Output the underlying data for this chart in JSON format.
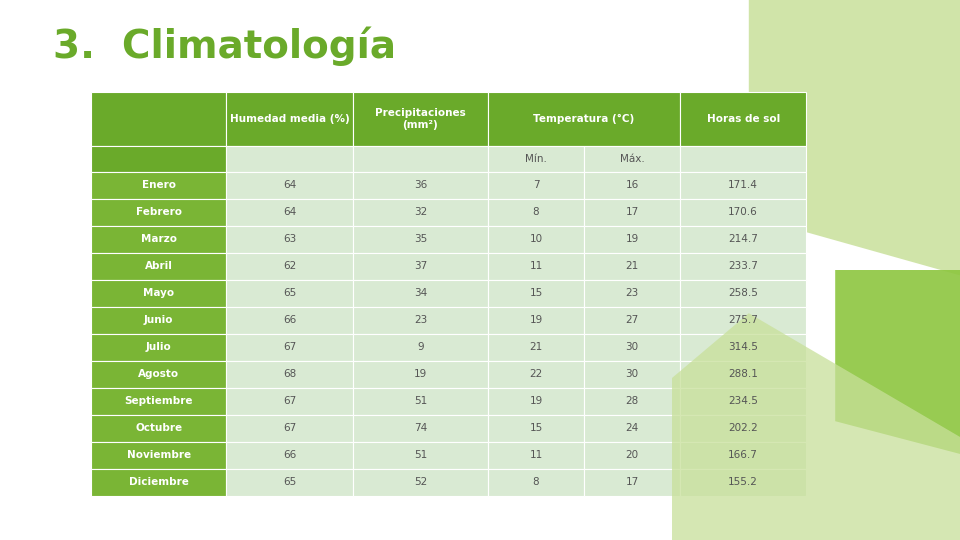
{
  "title": "3.  Climatología",
  "title_color": "#6aaa2a",
  "title_fontsize": 28,
  "background_color": "#ffffff",
  "col_headers": [
    "Humedad media (%)",
    "Precipitaciones\n(mm²)",
    "Temperatura (°C)",
    "Horas de sol"
  ],
  "months": [
    "Enero",
    "Febrero",
    "Marzo",
    "Abril",
    "Mayo",
    "Junio",
    "Julio",
    "Agosto",
    "Septiembre",
    "Octubre",
    "Noviembre",
    "Diciembre"
  ],
  "data": [
    [
      64,
      36,
      7,
      16,
      171.4
    ],
    [
      64,
      32,
      8,
      17,
      170.6
    ],
    [
      63,
      35,
      10,
      19,
      214.7
    ],
    [
      62,
      37,
      11,
      21,
      233.7
    ],
    [
      65,
      34,
      15,
      23,
      258.5
    ],
    [
      66,
      23,
      19,
      27,
      275.7
    ],
    [
      67,
      9,
      21,
      30,
      314.5
    ],
    [
      68,
      19,
      22,
      30,
      288.1
    ],
    [
      67,
      51,
      19,
      28,
      234.5
    ],
    [
      67,
      74,
      15,
      24,
      202.2
    ],
    [
      66,
      51,
      11,
      20,
      166.7
    ],
    [
      65,
      52,
      8,
      17,
      155.2
    ]
  ],
  "header_dark_green": "#6aaa2a",
  "header_light_green": "#c5e0a0",
  "row_dark_green": "#7ab535",
  "row_light_green": "#d9ead3",
  "text_white": "#ffffff",
  "cell_text_color": "#555555",
  "deco_light": "#c8e09a",
  "deco_mid": "#8dc63f",
  "deco_dark": "#5a9e1a"
}
